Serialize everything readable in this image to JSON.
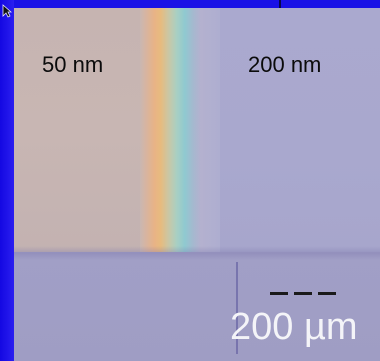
{
  "image": {
    "labels": {
      "left_region": "50 nm",
      "right_region": "200 nm"
    },
    "scale_bar": {
      "label": "200 µm"
    },
    "icons": {
      "cursor": "arrow-cursor-icon"
    },
    "colors": {
      "border": "#1a10e8",
      "thin_film": "#c6b4b1",
      "thick_film": "#aaa9cf",
      "substrate": "#a19fc6",
      "label_text": "#0b0b0b",
      "scale_text": "#f4f4f8"
    }
  }
}
